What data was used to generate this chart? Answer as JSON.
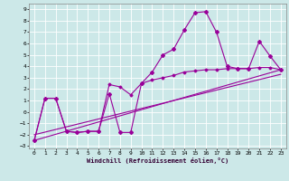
{
  "title": "",
  "xlabel": "Windchill (Refroidissement éolien,°C)",
  "bg_color": "#cce8e8",
  "grid_color": "#ffffff",
  "line_color": "#990099",
  "xlim": [
    -0.5,
    23.5
  ],
  "ylim": [
    -3.2,
    9.5
  ],
  "xticks": [
    0,
    1,
    2,
    3,
    4,
    5,
    6,
    7,
    8,
    9,
    10,
    11,
    12,
    13,
    14,
    15,
    16,
    17,
    18,
    19,
    20,
    21,
    22,
    23
  ],
  "yticks": [
    -3,
    -2,
    -1,
    0,
    1,
    2,
    3,
    4,
    5,
    6,
    7,
    8,
    9
  ],
  "line1_x": [
    0,
    1,
    2,
    3,
    4,
    5,
    6,
    7,
    8,
    9,
    10,
    11,
    12,
    13,
    14,
    15,
    16,
    17,
    18,
    19,
    20,
    21,
    22,
    23
  ],
  "line1_y": [
    -2.5,
    1.2,
    1.2,
    -1.7,
    -1.8,
    -1.7,
    -1.7,
    1.6,
    -1.8,
    -1.8,
    2.5,
    3.5,
    5.0,
    5.5,
    7.2,
    8.7,
    8.8,
    7.0,
    4.0,
    3.8,
    3.8,
    6.2,
    4.9,
    3.7
  ],
  "line2_x": [
    0,
    1,
    2,
    3,
    4,
    5,
    6,
    7,
    8,
    9,
    10,
    11,
    12,
    13,
    14,
    15,
    16,
    17,
    18,
    19,
    20,
    21,
    22,
    23
  ],
  "line2_y": [
    -2.5,
    1.2,
    1.2,
    -1.7,
    -1.8,
    -1.7,
    -1.7,
    2.4,
    2.2,
    1.5,
    2.5,
    2.8,
    3.0,
    3.2,
    3.5,
    3.6,
    3.7,
    3.7,
    3.8,
    3.8,
    3.8,
    3.9,
    3.9,
    3.7
  ],
  "line3_x": [
    0,
    23
  ],
  "line3_y": [
    -2.5,
    3.7
  ],
  "line4_x": [
    0,
    23
  ],
  "line4_y": [
    -2.0,
    3.3
  ],
  "xlabel_fontsize": 5.0,
  "tick_labelsize": 4.5
}
